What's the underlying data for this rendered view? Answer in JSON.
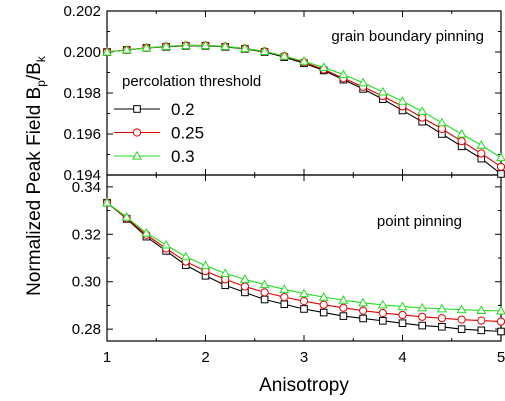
{
  "figure": {
    "ylabel_main": "Normalized Peak Field B",
    "ylabel_sub1": "p",
    "ylabel_slash": "/B",
    "ylabel_sub2": "k",
    "xlabel": "Anisotropy",
    "legend_title": "percolation threshold"
  },
  "colors": {
    "s0.2": "#000000",
    "s0.25": "#e00000",
    "s0.3": "#22dd22"
  },
  "chart_data": [
    {
      "type": "line",
      "panel": "top",
      "title": "",
      "annotation": "grain boundary pinning",
      "xlabel": "Anisotropy",
      "ylabel": "Normalized Peak Field B_p/B_k",
      "xlim": [
        1,
        5
      ],
      "ylim": [
        0.194,
        0.202
      ],
      "x_ticks": [
        1,
        2,
        3,
        4,
        5
      ],
      "y_ticks": [
        0.194,
        0.196,
        0.198,
        0.2,
        0.202
      ],
      "y_tick_labels": [
        "0.194",
        "0.196",
        "0.198",
        "0.200",
        "0.202"
      ],
      "legend": {
        "title": "percolation threshold",
        "position": "left"
      },
      "x": [
        1.0,
        1.2,
        1.4,
        1.6,
        1.8,
        2.0,
        2.2,
        2.4,
        2.6,
        2.8,
        3.0,
        3.2,
        3.4,
        3.6,
        3.8,
        4.0,
        4.2,
        4.4,
        4.6,
        4.8,
        5.0
      ],
      "series": [
        {
          "name": "0.2",
          "marker": "square",
          "values": [
            0.2,
            0.2001,
            0.2002,
            0.20025,
            0.2003,
            0.2003,
            0.20025,
            0.20015,
            0.2,
            0.19975,
            0.19945,
            0.1991,
            0.19865,
            0.1982,
            0.1977,
            0.19715,
            0.1966,
            0.196,
            0.1954,
            0.1948,
            0.19405
          ]
        },
        {
          "name": "0.25",
          "marker": "circle",
          "values": [
            0.2,
            0.2001,
            0.2002,
            0.20027,
            0.20032,
            0.20032,
            0.20027,
            0.20017,
            0.20003,
            0.1998,
            0.1995,
            0.19915,
            0.19872,
            0.1983,
            0.19785,
            0.19735,
            0.1968,
            0.19625,
            0.19565,
            0.19505,
            0.1944
          ]
        },
        {
          "name": "0.3",
          "marker": "triangle",
          "values": [
            0.2,
            0.2001,
            0.2002,
            0.20027,
            0.20032,
            0.20032,
            0.20027,
            0.20017,
            0.20003,
            0.1998,
            0.19955,
            0.19925,
            0.1989,
            0.1985,
            0.19805,
            0.1976,
            0.1971,
            0.19655,
            0.196,
            0.19545,
            0.19485
          ]
        }
      ]
    },
    {
      "type": "line",
      "panel": "bottom",
      "title": "",
      "annotation": "point pinning",
      "xlabel": "Anisotropy",
      "ylabel": "Normalized Peak Field B_p/B_k",
      "xlim": [
        1,
        5
      ],
      "ylim": [
        0.275,
        0.345
      ],
      "x_ticks": [
        1,
        2,
        3,
        4,
        5
      ],
      "y_ticks": [
        0.28,
        0.3,
        0.32,
        0.34
      ],
      "y_tick_labels": [
        "0.28",
        "0.30",
        "0.32",
        "0.34"
      ],
      "x": [
        1.0,
        1.2,
        1.4,
        1.6,
        1.8,
        2.0,
        2.2,
        2.4,
        2.6,
        2.8,
        3.0,
        3.2,
        3.4,
        3.6,
        3.8,
        4.0,
        4.2,
        4.4,
        4.6,
        4.8,
        5.0
      ],
      "series": [
        {
          "name": "0.2",
          "marker": "square",
          "values": [
            0.3333,
            0.3265,
            0.319,
            0.313,
            0.307,
            0.3025,
            0.2985,
            0.2955,
            0.2925,
            0.2905,
            0.2885,
            0.287,
            0.2855,
            0.2845,
            0.2835,
            0.2825,
            0.2815,
            0.281,
            0.28,
            0.2795,
            0.279
          ]
        },
        {
          "name": "0.25",
          "marker": "circle",
          "values": [
            0.3333,
            0.3268,
            0.3198,
            0.314,
            0.3085,
            0.3045,
            0.301,
            0.298,
            0.2955,
            0.2935,
            0.2918,
            0.2903,
            0.289,
            0.2878,
            0.2868,
            0.286,
            0.2852,
            0.2846,
            0.284,
            0.2836,
            0.2832
          ]
        },
        {
          "name": "0.3",
          "marker": "triangle",
          "values": [
            0.3333,
            0.3272,
            0.3205,
            0.3155,
            0.3105,
            0.3068,
            0.3035,
            0.301,
            0.2988,
            0.2968,
            0.295,
            0.2935,
            0.2922,
            0.2911,
            0.2902,
            0.2895,
            0.289,
            0.2886,
            0.2882,
            0.2879,
            0.2877
          ]
        }
      ]
    }
  ]
}
